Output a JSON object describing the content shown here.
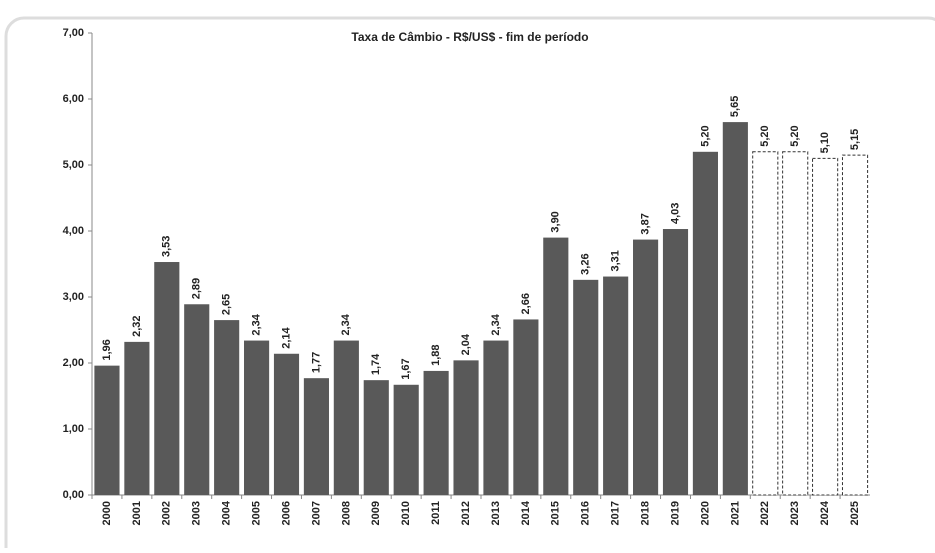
{
  "chart_data": {
    "type": "bar",
    "title": "Taxa de Câmbio -  R$/US$ - fim de período",
    "categories": [
      "2000",
      "2001",
      "2002",
      "2003",
      "2004",
      "2005",
      "2006",
      "2007",
      "2008",
      "2009",
      "2010",
      "2011",
      "2012",
      "2013",
      "2014",
      "2015",
      "2016",
      "2017",
      "2018",
      "2019",
      "2020",
      "2021",
      "2022",
      "2023",
      "2024",
      "2025"
    ],
    "values": [
      1.96,
      2.32,
      3.53,
      2.89,
      2.65,
      2.34,
      2.14,
      1.77,
      2.34,
      1.74,
      1.67,
      1.88,
      2.04,
      2.34,
      2.66,
      3.9,
      3.26,
      3.31,
      3.87,
      4.03,
      5.2,
      5.65,
      5.2,
      5.2,
      5.1,
      5.15
    ],
    "value_labels": [
      "1,96",
      "2,32",
      "3,53",
      "2,89",
      "2,65",
      "2,34",
      "2,14",
      "1,77",
      "2,34",
      "1,74",
      "1,67",
      "1,88",
      "2,04",
      "2,34",
      "2,66",
      "3,90",
      "3,26",
      "3,31",
      "3,87",
      "4,03",
      "5,20",
      "5,65",
      "5,20",
      "5,20",
      "5,10",
      "5,15"
    ],
    "color": "#595959",
    "bar_styles": [
      "solid",
      "solid",
      "solid",
      "solid",
      "solid",
      "solid",
      "solid",
      "solid",
      "solid",
      "solid",
      "solid",
      "solid",
      "solid",
      "solid",
      "solid",
      "solid",
      "solid",
      "solid",
      "solid",
      "solid",
      "solid",
      "solid",
      "dashed",
      "dashed",
      "dashed",
      "dashed"
    ],
    "ylim": [
      0,
      7
    ],
    "yticks": [
      {
        "value": 0,
        "label": "0,00"
      },
      {
        "value": 1,
        "label": "1,00"
      },
      {
        "value": 2,
        "label": "2,00"
      },
      {
        "value": 3,
        "label": "3,00"
      },
      {
        "value": 4,
        "label": "4,00"
      },
      {
        "value": 5,
        "label": "5,00"
      },
      {
        "value": 6,
        "label": "6,00"
      },
      {
        "value": 7,
        "label": "7,00"
      }
    ],
    "grid": false
  }
}
